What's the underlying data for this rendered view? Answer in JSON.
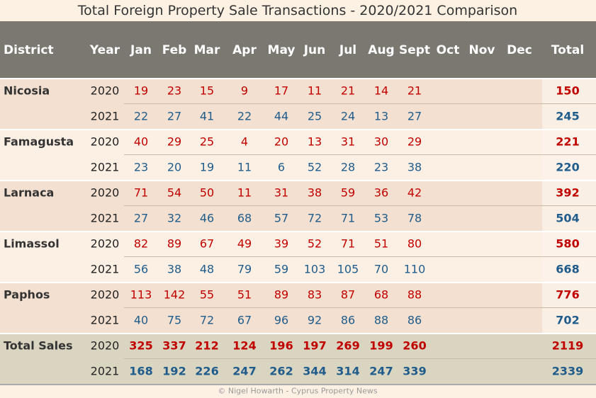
{
  "header": {
    "title": "Total Foreign Property Sale Transactions - 2020/2021 Comparison"
  },
  "table": {
    "columns": [
      "District",
      "Year",
      "Jan",
      "Feb",
      "Mar",
      "Apr",
      "May",
      "Jun",
      "Jul",
      "Aug",
      "Sept",
      "Oct",
      "Nov",
      "Dec",
      "Total"
    ],
    "groups": [
      {
        "district": "Nicosia",
        "rows": [
          {
            "year": 2020,
            "values": [
              19,
              23,
              15,
              9,
              17,
              11,
              21,
              14,
              21
            ],
            "total": 150
          },
          {
            "year": 2021,
            "values": [
              22,
              27,
              41,
              22,
              44,
              25,
              24,
              13,
              27
            ],
            "total": 245
          }
        ]
      },
      {
        "district": "Famagusta",
        "rows": [
          {
            "year": 2020,
            "values": [
              40,
              29,
              25,
              4,
              20,
              13,
              31,
              30,
              29
            ],
            "total": 221
          },
          {
            "year": 2021,
            "values": [
              23,
              20,
              19,
              11,
              6,
              52,
              28,
              23,
              38
            ],
            "total": 220
          }
        ]
      },
      {
        "district": "Larnaca",
        "rows": [
          {
            "year": 2020,
            "values": [
              71,
              54,
              50,
              11,
              31,
              38,
              59,
              36,
              42
            ],
            "total": 392
          },
          {
            "year": 2021,
            "values": [
              27,
              32,
              46,
              68,
              57,
              72,
              71,
              53,
              78
            ],
            "total": 504
          }
        ]
      },
      {
        "district": "Limassol",
        "rows": [
          {
            "year": 2020,
            "values": [
              82,
              89,
              67,
              49,
              39,
              52,
              71,
              51,
              80
            ],
            "total": 580
          },
          {
            "year": 2021,
            "values": [
              56,
              38,
              48,
              79,
              59,
              103,
              105,
              70,
              110
            ],
            "total": 668
          }
        ]
      },
      {
        "district": "Paphos",
        "rows": [
          {
            "year": 2020,
            "values": [
              113,
              142,
              55,
              51,
              89,
              83,
              87,
              68,
              88
            ],
            "total": 776
          },
          {
            "year": 2021,
            "values": [
              40,
              75,
              72,
              67,
              96,
              92,
              86,
              88,
              86
            ],
            "total": 702
          }
        ]
      },
      {
        "district": "Total Sales",
        "rows": [
          {
            "year": 2020,
            "values": [
              325,
              337,
              212,
              124,
              196,
              197,
              269,
              199,
              260
            ],
            "total": 2119
          },
          {
            "year": 2021,
            "values": [
              168,
              192,
              226,
              247,
              262,
              344,
              314,
              247,
              339
            ],
            "total": 2339
          }
        ]
      }
    ]
  },
  "footer": {
    "credit": "© Nigel Howarth - Cyprus Property News"
  }
}
